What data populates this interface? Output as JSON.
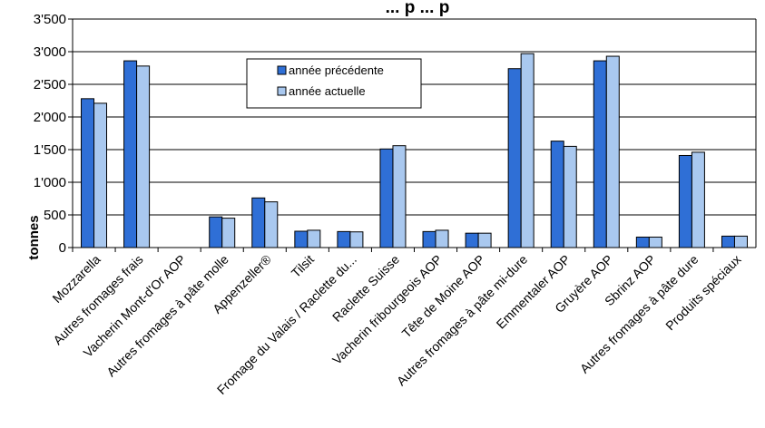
{
  "chart_data": {
    "type": "bar",
    "title": "... p ... p",
    "ylabel": "tonnes",
    "xlabel": "",
    "ylim": [
      0,
      3500
    ],
    "yticks": [
      0,
      500,
      1000,
      1500,
      2000,
      2500,
      3000,
      3500
    ],
    "ytick_labels": [
      "0",
      "500",
      "1'000",
      "1'500",
      "2'000",
      "2'500",
      "3'000",
      "3'500"
    ],
    "grid": true,
    "legend_position": "top-center",
    "categories": [
      "Mozzarella",
      "Autres fromages frais",
      "Vacherin Mont-d'Or AOP",
      "Autres fromages à pâte molle",
      "Appenzeller®",
      "Tilsit",
      "Fromage du Valais / Raclette du...",
      "Raclette Suisse",
      "Vacherin fribourgeois AOP",
      "Tête de Moine AOP",
      "Autres fromages à pâte mi-dure",
      "Emmentaler AOP",
      "Gruyère AOP",
      "Sbrinz AOP",
      "Autres fromages à pâte dure",
      "Produits spéciaux"
    ],
    "series": [
      {
        "name": "année précédente",
        "color": "#2f6fd6",
        "values": [
          2280,
          2860,
          0,
          470,
          760,
          250,
          245,
          1510,
          245,
          220,
          2740,
          1630,
          2860,
          160,
          1410,
          175
        ]
      },
      {
        "name": "année actuelle",
        "color": "#a9c8ef",
        "values": [
          2210,
          2780,
          0,
          450,
          700,
          265,
          240,
          1560,
          265,
          220,
          2970,
          1550,
          2930,
          160,
          1460,
          175
        ]
      }
    ]
  }
}
